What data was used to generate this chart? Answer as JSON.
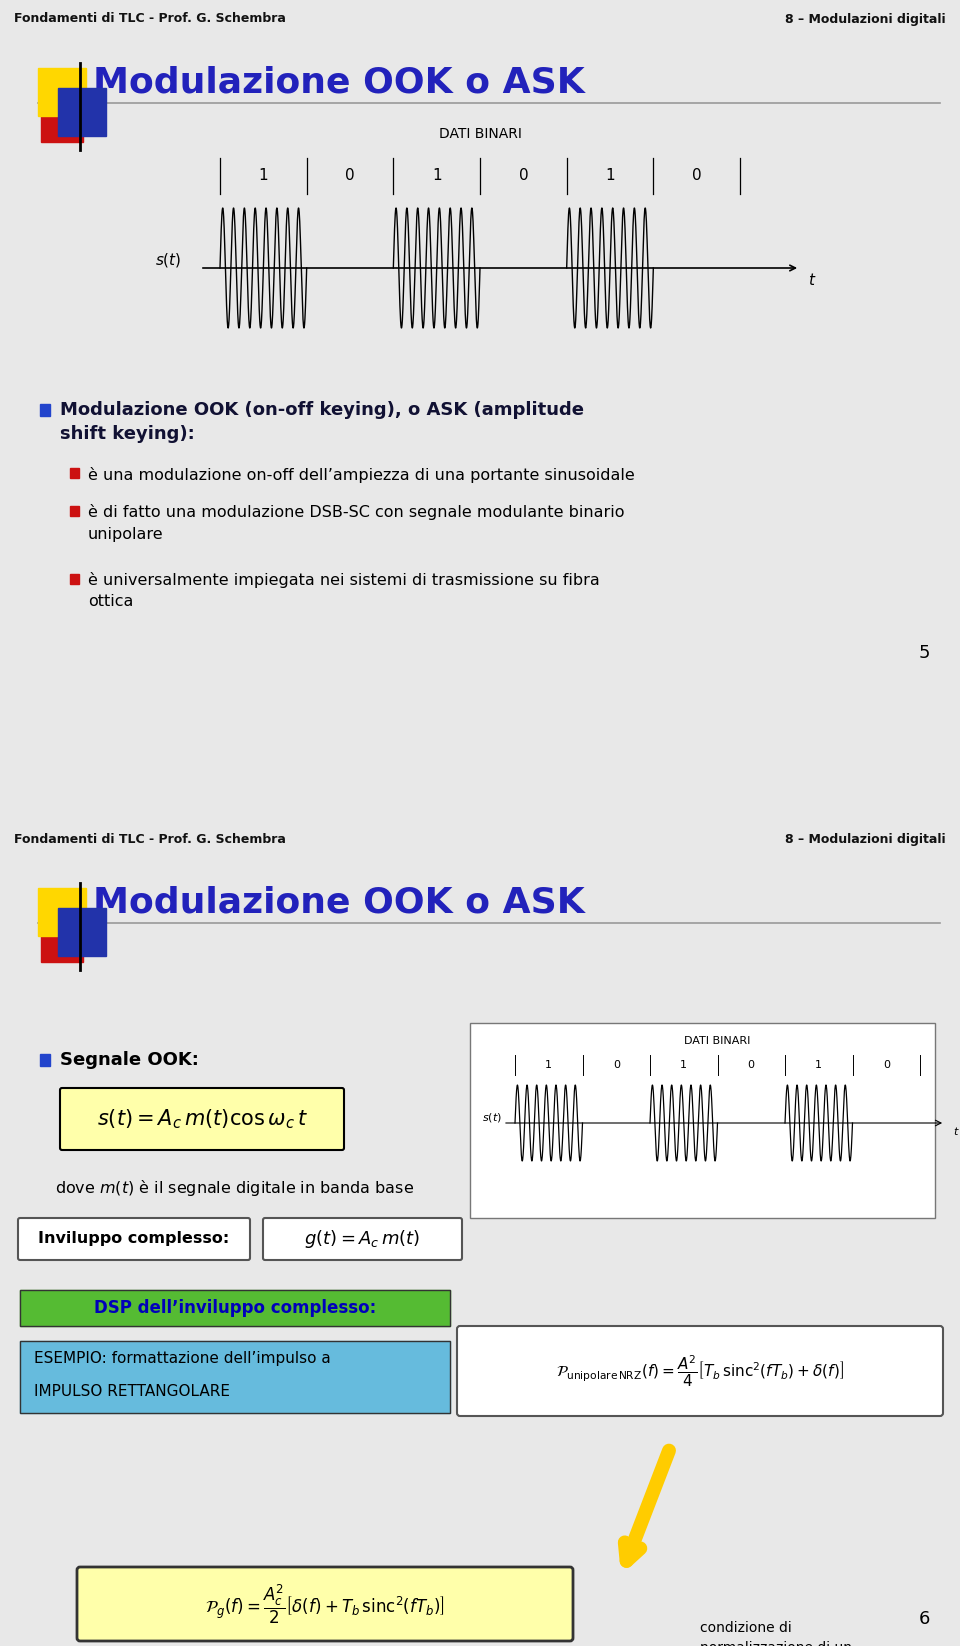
{
  "bg_color": "#e8e8e8",
  "white": "#ffffff",
  "header_bg": "#c8c8c8",
  "header_text_left": "Fondamenti di TLC - Prof. G. Schembra",
  "header_text_right": "8 – Modulazioni digitali",
  "slide1": {
    "title": "Modulazione OOK o ASK",
    "title_color": "#2222bb",
    "page_num": "5",
    "bullet1_header_line1": "Modulazione OOK (on-off keying), o ASK (amplitude",
    "bullet1_header_line2": "shift keying):",
    "sub1": "è una modulazione on-off dell’ampiezza di una portante sinusoidale",
    "sub2_line1": "è di fatto una modulazione DSB-SC con segnale modulante binario",
    "sub2_line2": "unipolare",
    "sub3_line1": "è universalmente impiegata nei sistemi di trasmissione su fibra",
    "sub3_line2": "ottica"
  },
  "slide2": {
    "title": "Modulazione OOK o ASK",
    "title_color": "#2222bb",
    "page_num": "6",
    "bullet1": "Segnale OOK:",
    "dove_text": "dove $m(t)$ è il segnale digitale in banda base",
    "inviluppo_label": "Inviluppo complesso:",
    "dsp_header": "DSP dell’inviluppo complesso:",
    "dsp_example_line1": "ESEMPIO: formattazione dell’impulso a",
    "dsp_example_line2": "IMPULSO RETTANGOLARE",
    "condizione_text": "condizione di\nnormalizzazione di un\nsegnale NRZ unipolare"
  },
  "logo_yellow": "#FFD700",
  "logo_blue": "#2233AA",
  "logo_red": "#CC1111",
  "bullet_blue": "#2244CC",
  "bullet_red": "#CC1111",
  "dsp_green": "#55BB33",
  "dsp_blue_text": "#0000BB",
  "example_blue": "#66BBDD",
  "formula_yellow": "#FFFFAA",
  "arrow_yellow": "#FFCC00"
}
